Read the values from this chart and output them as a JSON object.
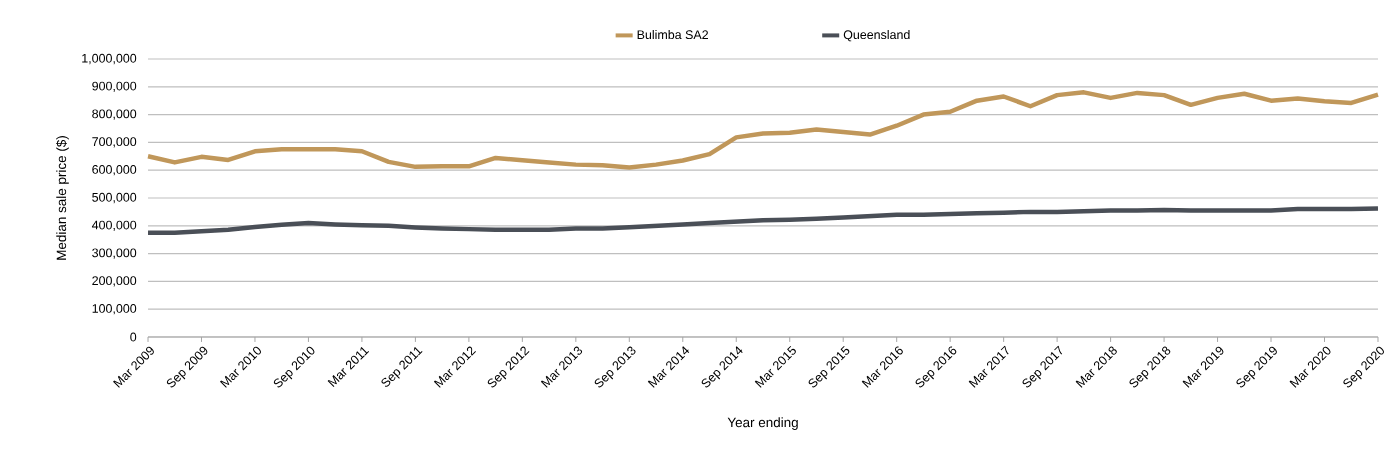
{
  "chart_data": {
    "type": "line",
    "xlabel": "Year ending",
    "ylabel": "Median sale price ($)",
    "categories": [
      "Mar 2009",
      null,
      "Sep 2009",
      null,
      "Mar 2010",
      null,
      "Sep 2010",
      null,
      "Mar 2011",
      null,
      "Sep 2011",
      null,
      "Mar 2012",
      null,
      "Sep 2012",
      null,
      "Mar 2013",
      null,
      "Sep 2013",
      null,
      "Mar 2014",
      null,
      "Sep 2014",
      null,
      "Mar 2015",
      null,
      "Sep 2015",
      null,
      "Mar 2016",
      null,
      "Sep 2016",
      null,
      "Mar 2017",
      null,
      "Sep 2017",
      null,
      "Mar 2018",
      null,
      "Sep 2018",
      null,
      "Mar 2019",
      null,
      "Sep 2019",
      null,
      "Mar 2020",
      null,
      "Sep 2020"
    ],
    "series": [
      {
        "name": "Bulimba SA2",
        "color": "#c0975a",
        "values": [
          650000,
          628000,
          648000,
          637000,
          668000,
          675000,
          675000,
          675000,
          668000,
          630000,
          612000,
          614000,
          614000,
          644000,
          636000,
          628000,
          620000,
          618000,
          610000,
          620000,
          635000,
          658000,
          718000,
          732000,
          735000,
          746000,
          737000,
          728000,
          760000,
          800000,
          810000,
          850000,
          865000,
          830000,
          870000,
          880000,
          860000,
          878000,
          870000,
          835000,
          860000,
          875000,
          850000,
          858000,
          848000,
          842000,
          872000
        ]
      },
      {
        "name": "Queensland",
        "color": "#4a4f57",
        "values": [
          375000,
          375000,
          380000,
          386000,
          396000,
          404000,
          410000,
          405000,
          402000,
          400000,
          394000,
          390000,
          388000,
          386000,
          386000,
          386000,
          390000,
          390000,
          395000,
          400000,
          405000,
          410000,
          415000,
          420000,
          422000,
          425000,
          430000,
          435000,
          440000,
          440000,
          442000,
          445000,
          447000,
          450000,
          450000,
          452000,
          455000,
          455000,
          457000,
          455000,
          455000,
          455000,
          455000,
          460000,
          460000,
          460000,
          462000
        ]
      }
    ],
    "ylim": [
      0,
      1000000
    ],
    "yticks": [
      0,
      {
        "value": 100000,
        "label": "100,000"
      },
      {
        "value": 200000,
        "label": "200,000"
      },
      {
        "value": 300000,
        "label": "300,000"
      },
      {
        "value": 400000,
        "label": "400,000"
      },
      {
        "value": 500000,
        "label": "500,000"
      },
      {
        "value": 600000,
        "label": "600,000"
      },
      {
        "value": 700000,
        "label": "700,000"
      },
      {
        "value": 800000,
        "label": "800,000"
      },
      {
        "value": 900000,
        "label": "900,000"
      },
      {
        "value": 1000000,
        "label": "1,000,000"
      }
    ],
    "grid": "y",
    "legend": "top",
    "marker": "none",
    "line_style": "solid"
  }
}
